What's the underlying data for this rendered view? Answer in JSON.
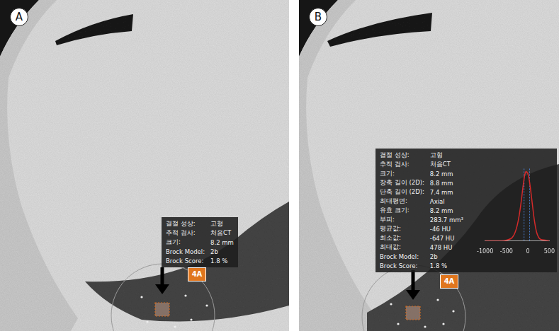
{
  "panels": [
    {
      "label": "A",
      "badge": "4A",
      "info": [
        [
          "결절 성상:",
          "고형"
        ],
        [
          "추적 검사:",
          "처음CT"
        ],
        [
          "크기:",
          "8.2 mm"
        ],
        [
          "Brock Model:",
          "2b"
        ],
        [
          "Brock Score:",
          "1.8 %"
        ]
      ]
    },
    {
      "label": "B",
      "badge": "4A",
      "info": [
        [
          "결절 성상:",
          "고형"
        ],
        [
          "추적 검사:",
          "처음CT"
        ],
        [
          "크기:",
          "8.2 mm"
        ],
        [
          "장축 길이 (2D):",
          "8.8 mm"
        ],
        [
          "단축 길이 (2D):",
          "7.4 mm"
        ],
        [
          "최대평면:",
          "Axial"
        ],
        [
          "유효 크기:",
          "8.2 mm"
        ],
        [
          "부피:",
          "283.7 mm³"
        ],
        [
          "평균값:",
          "-46 HU"
        ],
        [
          "최소값:",
          "-647 HU"
        ],
        [
          "최대값:",
          "478 HU"
        ],
        [
          "Brock Model:",
          "2b"
        ],
        [
          "Brock Score:",
          "1.8 %"
        ]
      ]
    }
  ],
  "chart_data": {
    "type": "line",
    "x": [
      -1000,
      -800,
      -600,
      -500,
      -400,
      -350,
      -300,
      -250,
      -200,
      -150,
      -100,
      -50,
      0,
      50,
      100,
      150,
      200,
      250,
      300,
      400,
      500
    ],
    "values": [
      0,
      0,
      0,
      0.01,
      0.03,
      0.06,
      0.12,
      0.22,
      0.38,
      0.6,
      0.85,
      1.0,
      0.97,
      0.8,
      0.55,
      0.3,
      0.13,
      0.05,
      0.02,
      0.01,
      0
    ],
    "color": "#d42a2a",
    "xlim": [
      -1000,
      500
    ],
    "xticks": [
      -1000,
      -500,
      0,
      500
    ],
    "ylim": [
      0,
      1.05
    ],
    "reference_lines": [
      -90,
      40
    ],
    "tick_labels": "x",
    "grid": false
  }
}
